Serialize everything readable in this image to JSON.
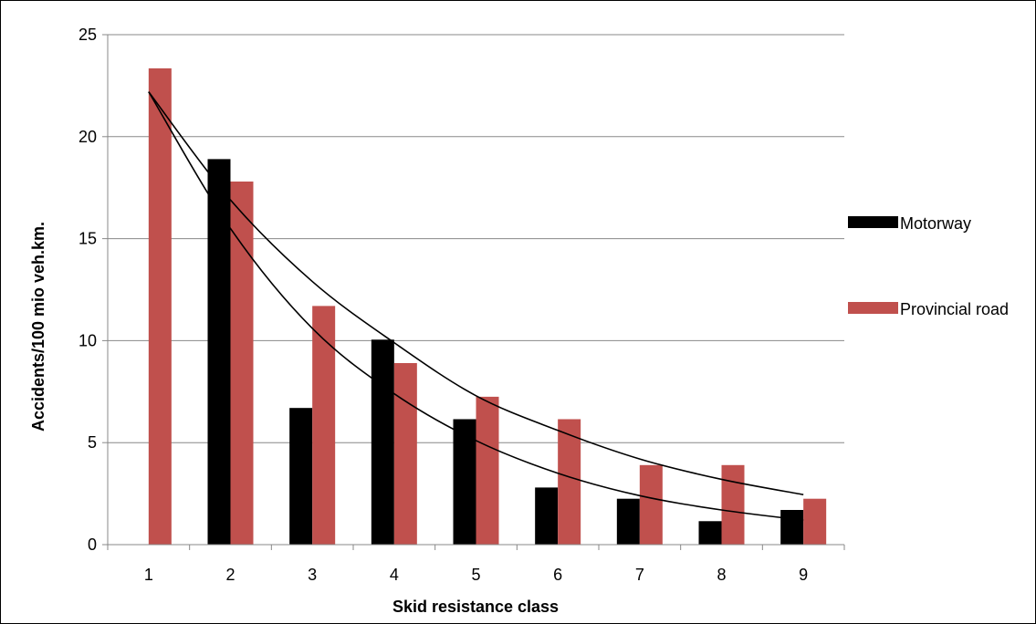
{
  "chart_data": {
    "type": "bar",
    "categories": [
      "1",
      "2",
      "3",
      "4",
      "5",
      "6",
      "7",
      "8",
      "9"
    ],
    "series": [
      {
        "name": "Motorway",
        "color": "#000000",
        "values": [
          null,
          18.9,
          6.7,
          10.05,
          6.15,
          2.8,
          2.25,
          1.15,
          1.7
        ]
      },
      {
        "name": "Provincial road",
        "color": "#c0504d",
        "values": [
          23.35,
          17.8,
          11.7,
          8.9,
          7.25,
          6.15,
          3.9,
          3.9,
          2.25
        ]
      }
    ],
    "trendlines": [
      {
        "type": "exponential",
        "x": [
          1,
          2,
          3,
          4,
          5,
          6,
          7,
          8,
          9
        ],
        "y": [
          22.2,
          15.5,
          10.6,
          7.4,
          5.1,
          3.5,
          2.4,
          1.7,
          1.2
        ],
        "color": "#000000"
      },
      {
        "type": "exponential",
        "x": [
          1,
          2,
          3,
          4,
          5,
          6,
          7,
          8,
          9
        ],
        "y": [
          22.2,
          16.9,
          12.9,
          9.9,
          7.3,
          5.6,
          4.2,
          3.2,
          2.45
        ],
        "color": "#000000"
      }
    ],
    "xlabel": "Skid resistance class",
    "ylabel": "Accidents/100 mio veh.km.",
    "ylim": [
      0,
      25
    ],
    "yticks": [
      0,
      5,
      10,
      15,
      20,
      25
    ],
    "grid": true,
    "legend_position": "right"
  }
}
